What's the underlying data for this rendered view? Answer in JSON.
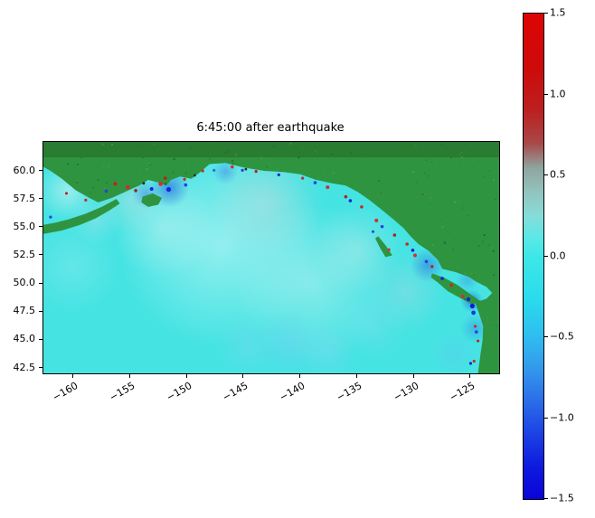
{
  "figure": {
    "title": "6:45:00 after earthquake"
  },
  "chart_data": {
    "type": "heatmap",
    "title": "6:45:00 after earthquake",
    "xlabel": "",
    "ylabel": "",
    "x_range": [
      -162.63,
      -122.49
    ],
    "y_range": [
      42.02,
      62.57
    ],
    "x_ticks": {
      "values": [
        -160,
        -155,
        -150,
        -145,
        -140,
        -135,
        -130,
        -125
      ],
      "labels": [
        "−160",
        "−155",
        "−150",
        "−145",
        "−140",
        "−135",
        "−130",
        "−125"
      ]
    },
    "y_ticks": {
      "values": [
        60.0,
        57.5,
        55.0,
        52.5,
        50.0,
        47.5,
        45.0,
        42.5
      ],
      "labels": [
        "60.0",
        "57.5",
        "55.0",
        "52.5",
        "50.0",
        "47.5",
        "45.0",
        "42.5"
      ]
    },
    "colorbar": {
      "min": -1.5,
      "max": 1.5,
      "ticks": {
        "values": [
          1.5,
          1.0,
          0.5,
          0.0,
          -0.5,
          -1.0,
          -1.5
        ],
        "labels": [
          "1.5",
          "1.0",
          "0.5",
          "0.0",
          "−0.5",
          "−1.0",
          "−1.5"
        ]
      },
      "stops": [
        {
          "v": 1.5,
          "c": "#de0404"
        },
        {
          "v": 1.15,
          "c": "#cc0b0b"
        },
        {
          "v": 0.9,
          "c": "#bc2020"
        },
        {
          "v": 0.7,
          "c": "#a84848"
        },
        {
          "v": 0.55,
          "c": "#8fa39e"
        },
        {
          "v": 0.4,
          "c": "#93c3bd"
        },
        {
          "v": 0.25,
          "c": "#86dcd9"
        },
        {
          "v": 0.12,
          "c": "#5ce8e6"
        },
        {
          "v": 0.0,
          "c": "#3ee7e7"
        },
        {
          "v": -0.25,
          "c": "#2bdcec"
        },
        {
          "v": -0.5,
          "c": "#2fbdef"
        },
        {
          "v": -0.7,
          "c": "#3397ec"
        },
        {
          "v": -0.9,
          "c": "#2b6ce8"
        },
        {
          "v": -1.1,
          "c": "#1c41e4"
        },
        {
          "v": -1.3,
          "c": "#0e1add"
        },
        {
          "v": -1.5,
          "c": "#0a04d8"
        }
      ]
    },
    "ocean_color": "#46e3e3",
    "land_color": "#2e9440",
    "land_dot_colors": [
      "#1e6f2c",
      "#176327",
      "#44aa4f",
      "#6b8f2a"
    ],
    "land_top_shade": "rgba(30,70,20,0.30)",
    "land_top_shade_lat": 61.2,
    "land_polygons": [
      {
        "name": "mainland",
        "points": [
          [
            -162.63,
            62.57
          ],
          [
            -122.49,
            62.57
          ],
          [
            -122.49,
            42.02
          ],
          [
            -124.35,
            42.02
          ],
          [
            -124.15,
            43.6
          ],
          [
            -123.95,
            45.0
          ],
          [
            -123.9,
            46.2
          ],
          [
            -124.25,
            47.3
          ],
          [
            -124.6,
            48.3
          ],
          [
            -123.6,
            48.65
          ],
          [
            -123.1,
            49.15
          ],
          [
            -123.6,
            49.7
          ],
          [
            -124.4,
            50.1
          ],
          [
            -125.2,
            50.6
          ],
          [
            -126.3,
            51.0
          ],
          [
            -127.5,
            51.3
          ],
          [
            -127.9,
            52.1
          ],
          [
            -128.7,
            52.9
          ],
          [
            -129.6,
            53.5
          ],
          [
            -130.3,
            54.2
          ],
          [
            -130.9,
            54.9
          ],
          [
            -131.8,
            55.7
          ],
          [
            -132.9,
            56.6
          ],
          [
            -133.9,
            57.4
          ],
          [
            -134.9,
            58.1
          ],
          [
            -136.0,
            58.7
          ],
          [
            -137.2,
            58.9
          ],
          [
            -138.6,
            59.2
          ],
          [
            -140.0,
            59.7
          ],
          [
            -141.5,
            59.9
          ],
          [
            -143.2,
            60.0
          ],
          [
            -145.0,
            60.3
          ],
          [
            -146.6,
            60.7
          ],
          [
            -148.0,
            60.6
          ],
          [
            -148.8,
            59.9
          ],
          [
            -149.6,
            59.3
          ],
          [
            -150.6,
            59.5
          ],
          [
            -151.4,
            59.2
          ],
          [
            -151.8,
            58.7
          ],
          [
            -152.6,
            59.0
          ],
          [
            -153.4,
            59.2
          ],
          [
            -154.2,
            58.7
          ],
          [
            -155.3,
            58.2
          ],
          [
            -156.6,
            57.6
          ],
          [
            -157.8,
            57.2
          ],
          [
            -158.6,
            57.6
          ],
          [
            -159.8,
            58.3
          ],
          [
            -161.0,
            59.3
          ],
          [
            -162.0,
            60.0
          ],
          [
            -162.63,
            60.35
          ]
        ]
      },
      {
        "name": "alaska_peninsula",
        "points": [
          [
            -156.2,
            57.5
          ],
          [
            -157.5,
            56.8
          ],
          [
            -158.9,
            56.2
          ],
          [
            -160.4,
            55.7
          ],
          [
            -161.6,
            55.4
          ],
          [
            -162.63,
            55.2
          ],
          [
            -162.63,
            54.4
          ],
          [
            -161.0,
            54.7
          ],
          [
            -159.4,
            55.2
          ],
          [
            -158.0,
            55.8
          ],
          [
            -156.8,
            56.5
          ],
          [
            -155.9,
            57.1
          ]
        ]
      },
      {
        "name": "kodiak_island",
        "points": [
          [
            -153.9,
            57.7
          ],
          [
            -153.0,
            58.0
          ],
          [
            -152.2,
            57.6
          ],
          [
            -152.5,
            57.0
          ],
          [
            -153.4,
            56.8
          ],
          [
            -154.0,
            57.2
          ]
        ]
      },
      {
        "name": "vancouver_island",
        "points": [
          [
            -128.4,
            50.9
          ],
          [
            -127.3,
            50.5
          ],
          [
            -126.2,
            49.9
          ],
          [
            -125.1,
            49.1
          ],
          [
            -124.1,
            48.4
          ],
          [
            -124.9,
            48.15
          ],
          [
            -125.9,
            48.7
          ],
          [
            -127.0,
            49.3
          ],
          [
            -127.9,
            50.1
          ],
          [
            -128.5,
            50.55
          ]
        ]
      },
      {
        "name": "haida_gwaii",
        "points": [
          [
            -133.15,
            54.2
          ],
          [
            -132.5,
            53.4
          ],
          [
            -131.9,
            52.5
          ],
          [
            -132.5,
            52.35
          ],
          [
            -133.0,
            53.2
          ],
          [
            -133.4,
            54.0
          ]
        ]
      }
    ],
    "wave_blobs": [
      {
        "lon": -147,
        "lat": 53.5,
        "r": 9,
        "color": "#ffffff",
        "alpha": 0.42
      },
      {
        "lon": -139,
        "lat": 50,
        "r": 7,
        "color": "#eef6f6",
        "alpha": 0.38
      },
      {
        "lon": -143,
        "lat": 57.2,
        "r": 5,
        "color": "#c9d9d9",
        "alpha": 0.45
      },
      {
        "lon": -152,
        "lat": 55,
        "r": 4.5,
        "color": "#eef6f6",
        "alpha": 0.32
      },
      {
        "lon": -135,
        "lat": 53,
        "r": 4,
        "color": "#d8eaea",
        "alpha": 0.35
      },
      {
        "lon": -130.8,
        "lat": 49.2,
        "r": 3.5,
        "color": "#c4d8e2",
        "alpha": 0.32
      },
      {
        "lon": -160.5,
        "lat": 58.2,
        "r": 2.6,
        "color": "#dff4f4",
        "alpha": 0.55
      },
      {
        "lon": -158,
        "lat": 55.6,
        "r": 2.2,
        "color": "#bfe4ef",
        "alpha": 0.35
      },
      {
        "lon": -160,
        "lat": 51.5,
        "r": 4,
        "color": "#a8efef",
        "alpha": 0.3
      },
      {
        "lon": -155,
        "lat": 57.5,
        "r": 3,
        "color": "#cfe0e0",
        "alpha": 0.4
      },
      {
        "lon": -141,
        "lat": 44.6,
        "r": 3,
        "color": "#6fd0f2",
        "alpha": 0.45
      },
      {
        "lon": -137.6,
        "lat": 43.9,
        "r": 2.6,
        "color": "#7ed7f2",
        "alpha": 0.42
      },
      {
        "lon": -144.6,
        "lat": 44.4,
        "r": 2.6,
        "color": "#7ed7f2",
        "alpha": 0.38
      },
      {
        "lon": -133.6,
        "lat": 46.3,
        "r": 3,
        "color": "#8fdff2",
        "alpha": 0.3
      },
      {
        "lon": -151.5,
        "lat": 58.45,
        "r": 1.7,
        "color": "#2f6fdf",
        "alpha": 0.7
      },
      {
        "lon": -153.6,
        "lat": 57.9,
        "r": 1.2,
        "color": "#4186e8",
        "alpha": 0.55
      },
      {
        "lon": -146.6,
        "lat": 59.9,
        "r": 1.1,
        "color": "#4186e8",
        "alpha": 0.5
      },
      {
        "lon": -128.8,
        "lat": 51.6,
        "r": 1.5,
        "color": "#2f6fdf",
        "alpha": 0.55
      },
      {
        "lon": -125.3,
        "lat": 50.3,
        "r": 1.0,
        "color": "#4196e8",
        "alpha": 0.5
      },
      {
        "lon": -124.9,
        "lat": 48.45,
        "r": 1.0,
        "color": "#2050d8",
        "alpha": 0.6
      },
      {
        "lon": -124.6,
        "lat": 46.0,
        "r": 1.3,
        "color": "#2f86e8",
        "alpha": 0.45
      },
      {
        "lon": -126.5,
        "lat": 43.8,
        "r": 2.0,
        "color": "#5cc8f0",
        "alpha": 0.4
      }
    ],
    "speckles": [
      [
        -156.3,
        58.85,
        "#c41f1f",
        2
      ],
      [
        -155.2,
        58.55,
        "#d42a2a",
        2.2
      ],
      [
        -154.5,
        58.25,
        "#9e2424",
        1.8
      ],
      [
        -152.3,
        58.85,
        "#d03030",
        2.4
      ],
      [
        -151.9,
        59.35,
        "#b02020",
        1.8
      ],
      [
        -150.2,
        59.25,
        "#c42a2a",
        1.6
      ],
      [
        -148.6,
        60.0,
        "#c42a2a",
        1.6
      ],
      [
        -146.0,
        60.35,
        "#d03030",
        1.8
      ],
      [
        -143.9,
        59.95,
        "#b02020",
        1.6
      ],
      [
        -139.8,
        59.35,
        "#c42a2a",
        1.6
      ],
      [
        -137.6,
        58.55,
        "#d03030",
        2.0
      ],
      [
        -136.0,
        57.7,
        "#b02020",
        1.8
      ],
      [
        -134.6,
        56.8,
        "#c42a2a",
        1.8
      ],
      [
        -133.3,
        55.6,
        "#d03030",
        2.0
      ],
      [
        -131.7,
        54.3,
        "#b02020",
        1.8
      ],
      [
        -130.6,
        53.5,
        "#c42a2a",
        1.8
      ],
      [
        -129.9,
        52.5,
        "#d03030",
        2.0
      ],
      [
        -128.4,
        51.5,
        "#b02020",
        1.6
      ],
      [
        -126.7,
        49.85,
        "#c42a2a",
        1.8
      ],
      [
        -125.7,
        48.85,
        "#d03030",
        1.8
      ],
      [
        -124.6,
        46.2,
        "#c42a2a",
        1.6
      ],
      [
        -124.35,
        44.9,
        "#b02020",
        1.5
      ],
      [
        -124.7,
        43.1,
        "#c42a2a",
        1.6
      ],
      [
        -132.2,
        53.0,
        "#d03030",
        1.6
      ],
      [
        -158.9,
        57.4,
        "#c42a2a",
        1.6
      ],
      [
        -160.6,
        58.0,
        "#b02020",
        1.5
      ],
      [
        -157.1,
        58.2,
        "#2343e0",
        1.8
      ],
      [
        -153.1,
        58.4,
        "#1228d8",
        2.0
      ],
      [
        -151.6,
        58.35,
        "#1228d8",
        2.6
      ],
      [
        -150.1,
        58.75,
        "#2343e0",
        1.8
      ],
      [
        -147.6,
        60.05,
        "#3a6ae8",
        1.6
      ],
      [
        -145.1,
        60.05,
        "#2343e0",
        1.6
      ],
      [
        -141.9,
        59.65,
        "#1228d8",
        1.6
      ],
      [
        -138.7,
        58.95,
        "#2343e0",
        1.8
      ],
      [
        -135.6,
        57.35,
        "#1228d8",
        1.8
      ],
      [
        -132.8,
        55.05,
        "#2343e0",
        1.8
      ],
      [
        -130.1,
        52.95,
        "#1228d8",
        1.8
      ],
      [
        -128.9,
        51.95,
        "#2343e0",
        1.8
      ],
      [
        -127.5,
        50.45,
        "#1228d8",
        1.8
      ],
      [
        -125.2,
        48.6,
        "#1228d8",
        2.2
      ],
      [
        -124.75,
        47.4,
        "#1a3ae0",
        2.4
      ],
      [
        -124.5,
        45.7,
        "#2343e0",
        1.8
      ],
      [
        -125.0,
        42.9,
        "#1228d8",
        1.6
      ],
      [
        -124.85,
        48.0,
        "#0f1ed0",
        2.6
      ],
      [
        -133.6,
        54.6,
        "#2343e0",
        1.5
      ],
      [
        -162.0,
        55.9,
        "#2343e0",
        1.6
      ],
      [
        -153.8,
        58.9,
        "#223322",
        1.5
      ],
      [
        -149.3,
        59.6,
        "#223322",
        1.4
      ],
      [
        -144.8,
        60.15,
        "#223322",
        1.4
      ]
    ]
  }
}
